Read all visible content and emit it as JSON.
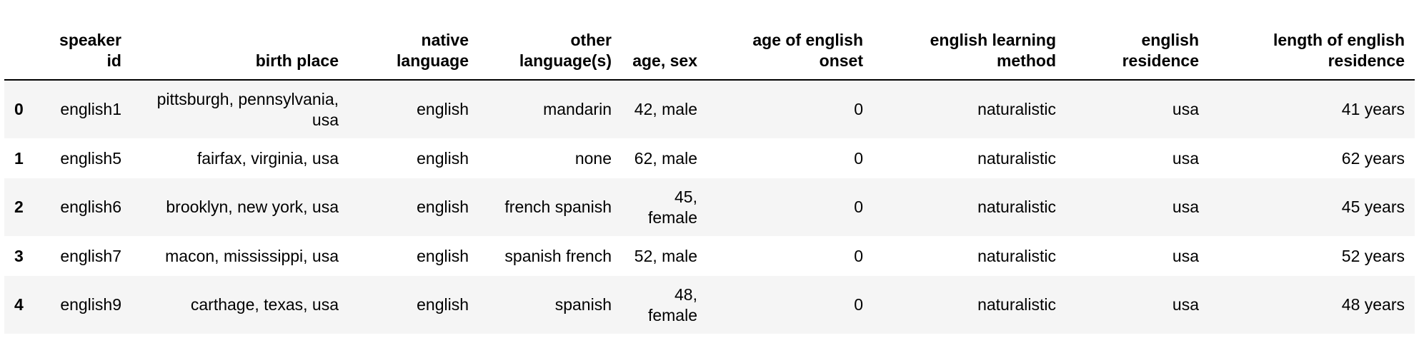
{
  "table": {
    "index_header": "",
    "columns": [
      "speaker id",
      "birth place",
      "native language",
      "other language(s)",
      "age, sex",
      "age of english onset",
      "english learning method",
      "english residence",
      "length of english residence"
    ],
    "rows": [
      {
        "index": "0",
        "cells": [
          "english1",
          "pittsburgh, pennsylvania, usa",
          "english",
          "mandarin",
          "42, male",
          "0",
          "naturalistic",
          "usa",
          "41 years"
        ]
      },
      {
        "index": "1",
        "cells": [
          "english5",
          "fairfax, virginia, usa",
          "english",
          "none",
          "62, male",
          "0",
          "naturalistic",
          "usa",
          "62 years"
        ]
      },
      {
        "index": "2",
        "cells": [
          "english6",
          "brooklyn, new york, usa",
          "english",
          "french spanish",
          "45, female",
          "0",
          "naturalistic",
          "usa",
          "45 years"
        ]
      },
      {
        "index": "3",
        "cells": [
          "english7",
          "macon, mississippi, usa",
          "english",
          "spanish french",
          "52, male",
          "0",
          "naturalistic",
          "usa",
          "52 years"
        ]
      },
      {
        "index": "4",
        "cells": [
          "english9",
          "carthage, texas, usa",
          "english",
          "spanish",
          "48, female",
          "0",
          "naturalistic",
          "usa",
          "48 years"
        ]
      }
    ]
  }
}
